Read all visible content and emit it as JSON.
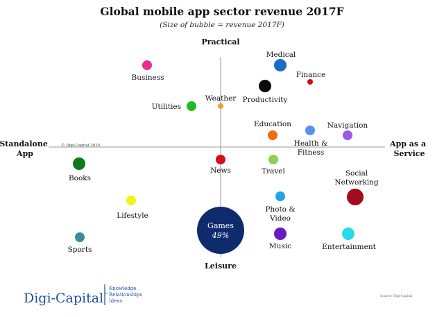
{
  "chart_data": {
    "type": "scatter",
    "title": "Global mobile app sector revenue 2017F",
    "subtitle": "(Size of bubble = revenue 2017F)",
    "axis_labels": {
      "top": "Practical",
      "bottom": "Leisure",
      "left": [
        "Standalone",
        "App"
      ],
      "right": [
        "App as a",
        "Service"
      ]
    },
    "copyright_note": "© Digi-Capital 2014",
    "source_note": "Source: Digi-Capital",
    "points": [
      {
        "name": "Business",
        "label_lines": [
          "Business"
        ],
        "color": "#ec2d8f",
        "size": "small"
      },
      {
        "name": "Medical",
        "label_lines": [
          "Medical"
        ],
        "color": "#1b6dc2",
        "size": "medium"
      },
      {
        "name": "Finance",
        "label_lines": [
          "Finance"
        ],
        "color": "#d9001a",
        "size": "tiny"
      },
      {
        "name": "Productivity",
        "label_lines": [
          "Productivity"
        ],
        "color": "#0a0a0a",
        "size": "medium"
      },
      {
        "name": "Weather",
        "label_lines": [
          "Weather"
        ],
        "color": "#f0a030",
        "size": "tiny"
      },
      {
        "name": "Utilities",
        "label_lines": [
          "Utilities"
        ],
        "color": "#1ebc24",
        "size": "small"
      },
      {
        "name": "Education",
        "label_lines": [
          "Education"
        ],
        "color": "#ef6c12",
        "size": "small"
      },
      {
        "name": "Health & Fitness",
        "label_lines": [
          "Health &",
          "Fitness"
        ],
        "color": "#5b8fec",
        "size": "small"
      },
      {
        "name": "Navigation",
        "label_lines": [
          "Navigation"
        ],
        "color": "#9b59e6",
        "size": "small"
      },
      {
        "name": "Books",
        "label_lines": [
          "Books"
        ],
        "color": "#0d7a1c",
        "size": "medium"
      },
      {
        "name": "News",
        "label_lines": [
          "News"
        ],
        "color": "#d31020",
        "size": "small"
      },
      {
        "name": "Travel",
        "label_lines": [
          "Travel"
        ],
        "color": "#8fce58",
        "size": "small"
      },
      {
        "name": "Social Networking",
        "label_lines": [
          "Social",
          "Networking"
        ],
        "color": "#a50b20",
        "size": "large"
      },
      {
        "name": "Lifestyle",
        "label_lines": [
          "Lifestyle"
        ],
        "color": "#f6f21a",
        "size": "small"
      },
      {
        "name": "Photo & Video",
        "label_lines": [
          "Photo &",
          "Video"
        ],
        "color": "#1aa6e8",
        "size": "small"
      },
      {
        "name": "Games",
        "label_lines": [
          "Games",
          "49%"
        ],
        "color": "#0e2b6e",
        "size": "largest"
      },
      {
        "name": "Music",
        "label_lines": [
          "Music"
        ],
        "color": "#6a1ac3",
        "size": "medium"
      },
      {
        "name": "Entertainment",
        "label_lines": [
          "Entertainment"
        ],
        "color": "#2bd9ec",
        "size": "medium"
      },
      {
        "name": "Sports",
        "label_lines": [
          "Sports"
        ],
        "color": "#3a8c9c",
        "size": "small"
      }
    ]
  },
  "footer": {
    "logo_text": "Digi-Capital",
    "logo_mark": "™",
    "tagline_lines": [
      "Knowledge",
      "Relationships",
      "Ideas"
    ],
    "brand_color": "#1a4f9c"
  }
}
